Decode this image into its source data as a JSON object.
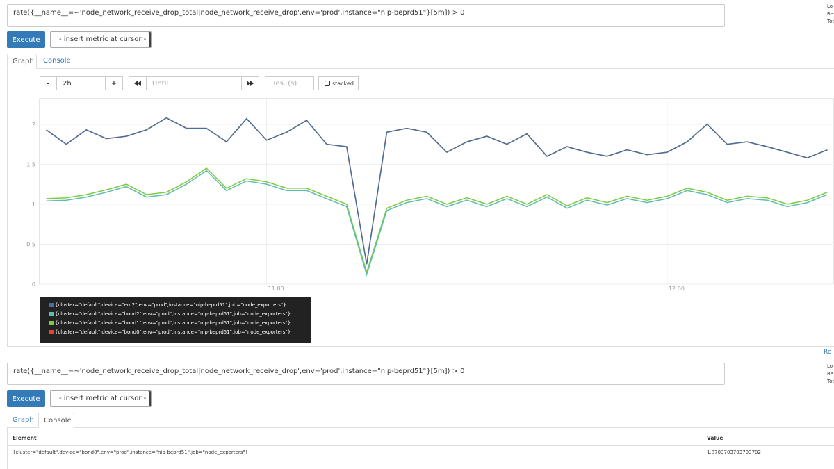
{
  "panels": [
    {
      "expression": "rate({__name__=~'node_network_receive_drop_total|node_network_receive_drop',env='prod',instance=\"nip-beprd51\"}[5m]) > 0",
      "stats": [
        "Lo",
        "Re",
        "Tot"
      ],
      "execute": "Execute",
      "insert_metric": "- insert metric at cursor -",
      "tabs": [
        "Graph",
        "Console"
      ],
      "controls": {
        "decrease": "-",
        "range": "2h",
        "increase": "+",
        "until": "Until",
        "resolution": "Res. (s)",
        "stacked": "stacked"
      },
      "remove": "Re"
    },
    {
      "expression": "rate({__name__=~'node_network_receive_drop_total|node_network_receive_drop',env='prod',instance=\"nip-beprd51\"}[5m]) > 0",
      "stats": [
        "Lo",
        "Re",
        "Tot"
      ],
      "execute": "Execute",
      "insert_metric": "- insert metric at cursor -",
      "tabs": [
        "Graph",
        "Console"
      ],
      "table": {
        "header": [
          "Element",
          "Value"
        ],
        "rows": [
          [
            "{cluster=\"default\",device=\"bond0\",env=\"prod\",instance=\"nip-beprd51\",job=\"node_exporters\"}",
            "1.8703703703703702"
          ]
        ]
      }
    }
  ],
  "chart_data": {
    "type": "line",
    "x": [
      "10:27",
      "10:30",
      "10:33",
      "10:36",
      "10:39",
      "10:42",
      "10:45",
      "10:48",
      "10:51",
      "10:54",
      "10:57",
      "11:00",
      "11:03",
      "11:06",
      "11:09",
      "11:12",
      "11:15",
      "11:18",
      "11:21",
      "11:24",
      "11:27",
      "11:30",
      "11:33",
      "11:36",
      "11:39",
      "11:42",
      "11:45",
      "11:48",
      "11:51",
      "11:54",
      "11:57",
      "12:00",
      "12:03",
      "12:06",
      "12:09",
      "12:12",
      "12:15",
      "12:18",
      "12:21",
      "12:24"
    ],
    "xlim": [
      "10:26",
      "12:25"
    ],
    "xticks": [
      "11:00",
      "12:00"
    ],
    "ylim": [
      0,
      2.32
    ],
    "yticks": [
      0,
      0.5,
      1,
      1.5,
      2
    ],
    "grid": true,
    "series": [
      {
        "name": "{cluster=\"default\",device=\"em2\",env=\"prod\",instance=\"nip-beprd51\",job=\"node_exporters\"}",
        "color": "#44709d",
        "values": [
          1.93,
          1.75,
          1.93,
          1.82,
          1.85,
          1.93,
          2.08,
          1.95,
          1.95,
          1.78,
          2.07,
          1.8,
          1.9,
          2.05,
          1.75,
          1.72,
          0.25,
          1.9,
          1.95,
          1.9,
          1.65,
          1.78,
          1.85,
          1.75,
          1.88,
          1.6,
          1.72,
          1.65,
          1.6,
          1.68,
          1.62,
          1.65,
          1.78,
          2.0,
          1.75,
          1.78,
          1.72,
          1.65,
          1.58,
          1.68
        ]
      },
      {
        "name": "{cluster=\"default\",device=\"bond2\",env=\"prod\",instance=\"nip-beprd51\",job=\"node_exporters\"}",
        "color": "#5bbfae",
        "values": [
          1.04,
          1.05,
          1.09,
          1.15,
          1.22,
          1.09,
          1.12,
          1.25,
          1.42,
          1.17,
          1.29,
          1.25,
          1.17,
          1.17,
          1.07,
          0.97,
          0.12,
          0.92,
          1.02,
          1.07,
          0.97,
          1.05,
          0.97,
          1.07,
          0.97,
          1.09,
          0.95,
          1.05,
          0.99,
          1.07,
          1.02,
          1.07,
          1.17,
          1.12,
          1.02,
          1.07,
          1.05,
          0.97,
          1.02,
          1.12
        ]
      },
      {
        "name": "{cluster=\"default\",device=\"bond1\",env=\"prod\",instance=\"nip-beprd51\",job=\"node_exporters\"}",
        "color": "#7dc940",
        "values": [
          1.07,
          1.08,
          1.12,
          1.18,
          1.25,
          1.12,
          1.15,
          1.28,
          1.45,
          1.2,
          1.32,
          1.28,
          1.2,
          1.2,
          1.1,
          1.0,
          0.15,
          0.95,
          1.05,
          1.1,
          1.0,
          1.08,
          1.0,
          1.1,
          1.0,
          1.12,
          0.98,
          1.08,
          1.02,
          1.1,
          1.05,
          1.1,
          1.2,
          1.15,
          1.05,
          1.1,
          1.08,
          1.0,
          1.05,
          1.15
        ]
      },
      {
        "name": "{cluster=\"default\",device=\"bond0\",env=\"prod\",instance=\"nip-beprd51\",job=\"node_exporters\"}",
        "color": "#e0482e",
        "values": [
          1.93,
          1.75,
          1.93,
          1.82,
          1.85,
          1.93,
          2.08,
          1.95,
          1.95,
          1.78,
          2.07,
          1.8,
          1.9,
          2.05,
          1.75,
          1.72,
          0.25,
          1.9,
          1.95,
          1.9,
          1.65,
          1.78,
          1.85,
          1.75,
          1.88,
          1.6,
          1.72,
          1.65,
          1.6,
          1.68,
          1.62,
          1.65,
          1.78,
          2.0,
          1.75,
          1.78,
          1.72,
          1.65,
          1.58,
          1.68
        ]
      }
    ]
  }
}
